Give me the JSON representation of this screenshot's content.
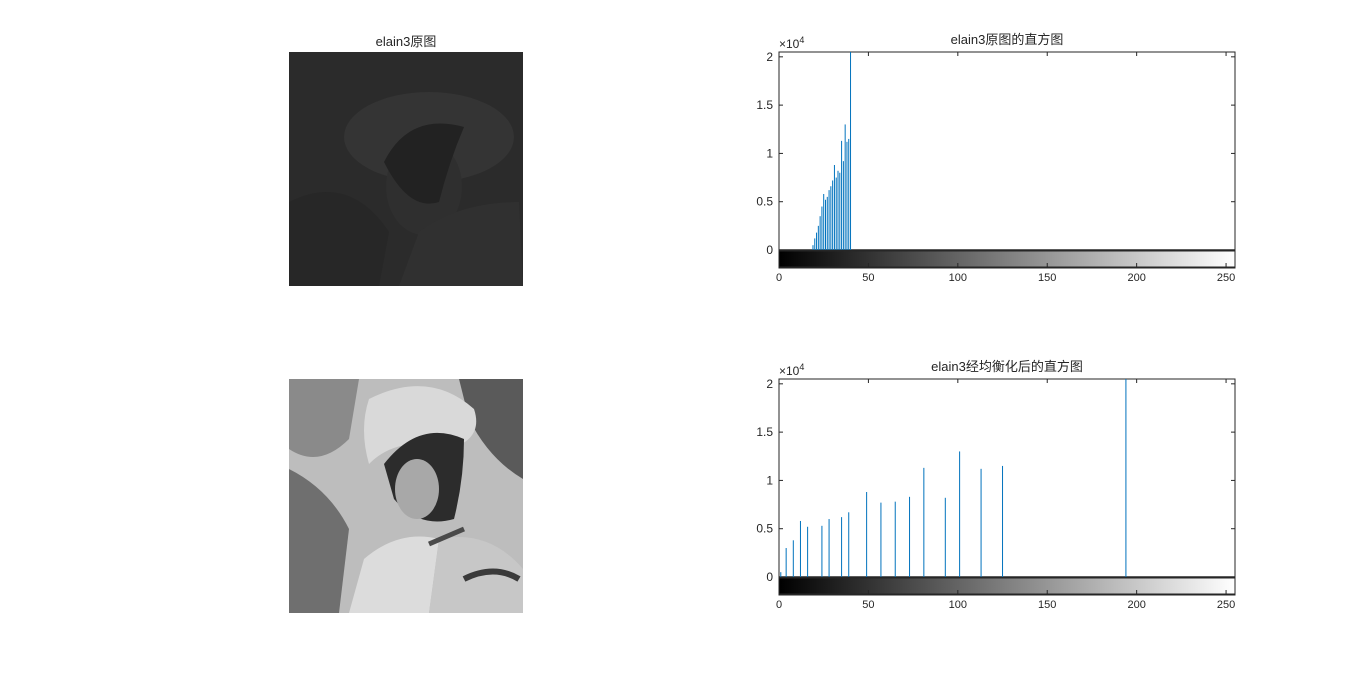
{
  "figure": {
    "image1": {
      "title": "elain3原图",
      "description_color": "#2a2a2a"
    },
    "image2": {
      "title": ""
    }
  },
  "chart_data": [
    {
      "type": "bar",
      "title": "elain3原图的直方图",
      "xlabel": "",
      "ylabel": "",
      "exponent_label": "×10",
      "exponent_power": "4",
      "xlim": [
        0,
        255
      ],
      "ylim": [
        -0.1,
        2.05
      ],
      "x_ticks": [
        0,
        50,
        100,
        150,
        200,
        250
      ],
      "x_tick_labels": [
        "0",
        "50",
        "100",
        "150",
        "200",
        "250"
      ],
      "y_ticks": [
        0,
        0.5,
        1,
        1.5,
        2
      ],
      "y_tick_labels": [
        "0",
        "0.5",
        "1",
        "1.5",
        "2"
      ],
      "grid": false,
      "colorbar": "grayscale 0-255 below x-axis",
      "series_color": "#0072BD",
      "x": [
        19,
        20,
        21,
        22,
        23,
        24,
        25,
        26,
        27,
        28,
        29,
        30,
        31,
        32,
        33,
        34,
        35,
        36,
        37,
        38,
        39,
        40
      ],
      "values": [
        0.05,
        0.12,
        0.18,
        0.25,
        0.35,
        0.45,
        0.58,
        0.52,
        0.55,
        0.62,
        0.66,
        0.72,
        0.88,
        0.75,
        0.82,
        0.8,
        1.13,
        0.92,
        1.3,
        1.12,
        1.15,
        2.05
      ]
    },
    {
      "type": "bar",
      "title": "elain3经均衡化后的直方图",
      "xlabel": "",
      "ylabel": "",
      "exponent_label": "×10",
      "exponent_power": "4",
      "xlim": [
        0,
        255
      ],
      "ylim": [
        -0.1,
        2.05
      ],
      "x_ticks": [
        0,
        50,
        100,
        150,
        200,
        250
      ],
      "x_tick_labels": [
        "0",
        "50",
        "100",
        "150",
        "200",
        "250"
      ],
      "y_ticks": [
        0,
        0.5,
        1,
        1.5,
        2
      ],
      "y_tick_labels": [
        "0",
        "0.5",
        "1",
        "1.5",
        "2"
      ],
      "grid": false,
      "colorbar": "grayscale 0-255 below x-axis",
      "series_color": "#0072BD",
      "x": [
        1,
        4,
        8,
        12,
        16,
        24,
        28,
        35,
        39,
        49,
        57,
        65,
        73,
        81,
        93,
        101,
        113,
        125,
        194
      ],
      "values": [
        0.05,
        0.3,
        0.38,
        0.58,
        0.52,
        0.53,
        0.6,
        0.62,
        0.67,
        0.88,
        0.77,
        0.78,
        0.83,
        1.13,
        0.82,
        1.3,
        1.12,
        1.15,
        2.05
      ]
    }
  ]
}
